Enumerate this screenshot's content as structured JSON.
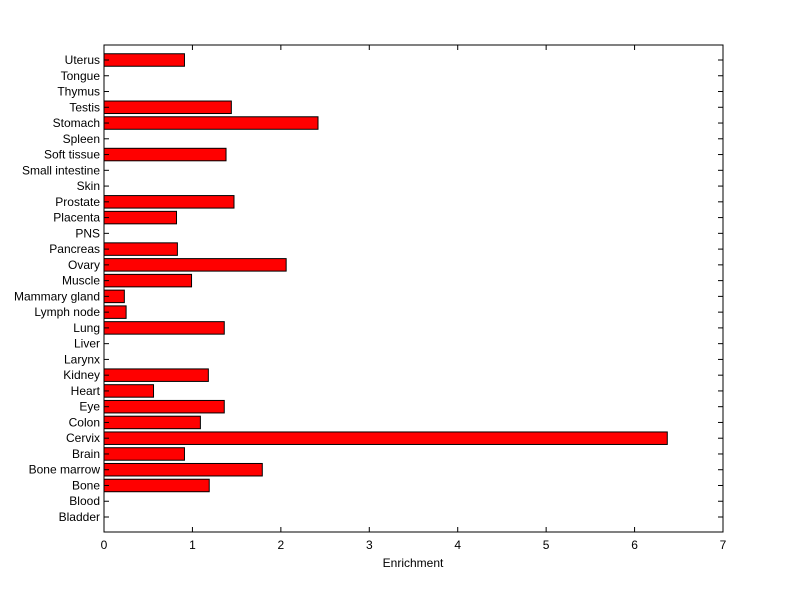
{
  "chart_data": {
    "type": "bar",
    "orientation": "horizontal",
    "categories": [
      "Bladder",
      "Blood",
      "Bone",
      "Bone marrow",
      "Brain",
      "Cervix",
      "Colon",
      "Eye",
      "Heart",
      "Kidney",
      "Larynx",
      "Liver",
      "Lung",
      "Lymph node",
      "Mammary gland",
      "Muscle",
      "Ovary",
      "Pancreas",
      "PNS",
      "Placenta",
      "Prostate",
      "Skin",
      "Small intestine",
      "Soft tissue",
      "Spleen",
      "Stomach",
      "Testis",
      "Thymus",
      "Tongue",
      "Uterus"
    ],
    "values": [
      0,
      0,
      1.19,
      1.79,
      0.91,
      6.37,
      1.09,
      1.36,
      0.56,
      1.18,
      0,
      0,
      1.36,
      0.25,
      0.23,
      0.99,
      2.06,
      0.83,
      0,
      0.82,
      1.47,
      0,
      0,
      1.38,
      0,
      2.42,
      1.44,
      0,
      0,
      0.91
    ],
    "title": "",
    "xlabel": "Enrichment",
    "ylabel": "",
    "xlim": [
      0,
      7
    ],
    "xticks": [
      0,
      1,
      2,
      3,
      4,
      5,
      6,
      7
    ],
    "grid": false,
    "colors": {
      "bar": "#ff0000",
      "edge": "#000000"
    }
  }
}
